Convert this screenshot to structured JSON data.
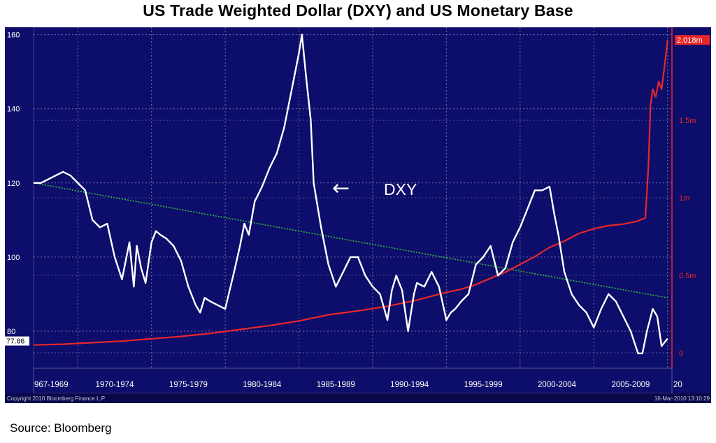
{
  "title": "US Trade Weighted Dollar (DXY) and US Monetary Base",
  "source": "Source: Bloomberg",
  "footer": {
    "copyright": "Copyright 2010 Bloomberg Finance L.P.",
    "timestamp": "16-Mar-2010 13:10:29"
  },
  "annotation": {
    "arrow": "←",
    "text": "DXY"
  },
  "colors": {
    "background": "#0d0d6b",
    "dxy": "#ffffff",
    "monetary_base": "#e8262a",
    "trend": "#2fbf3a",
    "grid": "#8a8ab8",
    "right_axis": "#e8262a"
  },
  "chart_data": {
    "type": "line",
    "title": "US Trade Weighted Dollar (DXY) and US Monetary Base",
    "xlabel": "",
    "ylabel": "",
    "x_range": [
      1967,
      2010.3
    ],
    "ylim_left": [
      70,
      162
    ],
    "ylim_right": [
      -0.1,
      2.1
    ],
    "grid": true,
    "x_tick_labels": [
      "967-1969",
      "1970-1974",
      "1975-1979",
      "1980-1984",
      "1985-1989",
      "1990-1994",
      "1995-1999",
      "2000-2004",
      "2005-2009",
      "20"
    ],
    "left_ticks": [
      80,
      100,
      120,
      140,
      160
    ],
    "right_ticks": [
      {
        "value": 0,
        "label": "0"
      },
      {
        "value": 0.5,
        "label": "0.5m"
      },
      {
        "value": 1,
        "label": "1m"
      },
      {
        "value": 1.5,
        "label": "1.5m"
      }
    ],
    "last_value_labels": {
      "dxy": "77.86",
      "monetary_base": "2.018m"
    },
    "series": [
      {
        "name": "DXY",
        "axis": "left",
        "x": [
          1967.0,
          1967.5,
          1968.0,
          1968.5,
          1969.0,
          1969.5,
          1970.0,
          1970.5,
          1971.0,
          1971.5,
          1972.0,
          1972.5,
          1973.0,
          1973.5,
          1973.8,
          1974.0,
          1974.3,
          1974.6,
          1975.0,
          1975.3,
          1975.6,
          1976.0,
          1976.5,
          1977.0,
          1977.5,
          1978.0,
          1978.3,
          1978.6,
          1979.0,
          1979.5,
          1980.0,
          1980.3,
          1980.6,
          1981.0,
          1981.3,
          1981.6,
          1982.0,
          1982.5,
          1983.0,
          1983.5,
          1984.0,
          1984.5,
          1985.0,
          1985.2,
          1985.5,
          1985.8,
          1986.0,
          1986.5,
          1987.0,
          1987.5,
          1988.0,
          1988.5,
          1989.0,
          1989.5,
          1990.0,
          1990.5,
          1991.0,
          1991.3,
          1991.6,
          1992.0,
          1992.4,
          1992.8,
          1993.0,
          1993.5,
          1994.0,
          1994.5,
          1995.0,
          1995.3,
          1995.6,
          1996.0,
          1996.5,
          1997.0,
          1997.5,
          1998.0,
          1998.5,
          1999.0,
          1999.5,
          2000.0,
          2000.5,
          2001.0,
          2001.5,
          2002.0,
          2002.3,
          2002.6,
          2003.0,
          2003.5,
          2004.0,
          2004.5,
          2005.0,
          2005.5,
          2006.0,
          2006.5,
          2007.0,
          2007.5,
          2008.0,
          2008.3,
          2008.6,
          2009.0,
          2009.3,
          2009.6,
          2010.0
        ],
        "values": [
          120,
          120,
          121,
          122,
          123,
          122,
          120,
          118,
          110,
          108,
          109,
          100,
          94,
          104,
          92,
          103,
          97,
          93,
          104,
          107,
          106,
          105,
          103,
          99,
          92,
          87,
          85,
          89,
          88,
          87,
          86,
          91,
          96,
          103,
          109,
          106,
          115,
          119,
          124,
          128,
          135,
          145,
          155,
          160,
          148,
          137,
          120,
          108,
          98,
          92,
          96,
          100,
          100,
          95,
          92,
          90,
          83,
          91,
          95,
          91,
          80,
          90,
          93,
          92,
          96,
          92,
          83,
          85,
          86,
          88,
          90,
          98,
          100,
          103,
          95,
          97,
          104,
          108,
          113,
          118,
          118,
          119,
          112,
          106,
          96,
          90,
          87,
          85,
          81,
          86,
          90,
          88,
          84,
          80,
          74,
          74,
          80,
          86,
          84,
          76,
          78
        ]
      },
      {
        "name": "US Monetary Base",
        "axis": "right",
        "x": [
          1967.0,
          1969.0,
          1971.0,
          1973.0,
          1975.0,
          1977.0,
          1979.0,
          1981.0,
          1983.0,
          1985.0,
          1987.0,
          1989.0,
          1991.0,
          1993.0,
          1995.0,
          1996.0,
          1997.0,
          1998.0,
          1999.0,
          2000.0,
          2001.0,
          2002.0,
          2003.0,
          2004.0,
          2005.0,
          2006.0,
          2007.0,
          2008.0,
          2008.5,
          2008.7,
          2008.85,
          2009.0,
          2009.2,
          2009.4,
          2009.6,
          2009.8,
          2010.0
        ],
        "values": [
          0.05,
          0.055,
          0.065,
          0.075,
          0.09,
          0.105,
          0.125,
          0.15,
          0.175,
          0.205,
          0.245,
          0.27,
          0.3,
          0.34,
          0.39,
          0.41,
          0.44,
          0.48,
          0.52,
          0.57,
          0.62,
          0.68,
          0.72,
          0.77,
          0.8,
          0.82,
          0.83,
          0.85,
          0.87,
          1.2,
          1.6,
          1.7,
          1.65,
          1.75,
          1.7,
          1.85,
          2.018
        ]
      },
      {
        "name": "",
        "axis": "left",
        "style": "dotted-trend",
        "x": [
          1967.0,
          2010.0
        ],
        "values": [
          120,
          89
        ]
      }
    ]
  }
}
